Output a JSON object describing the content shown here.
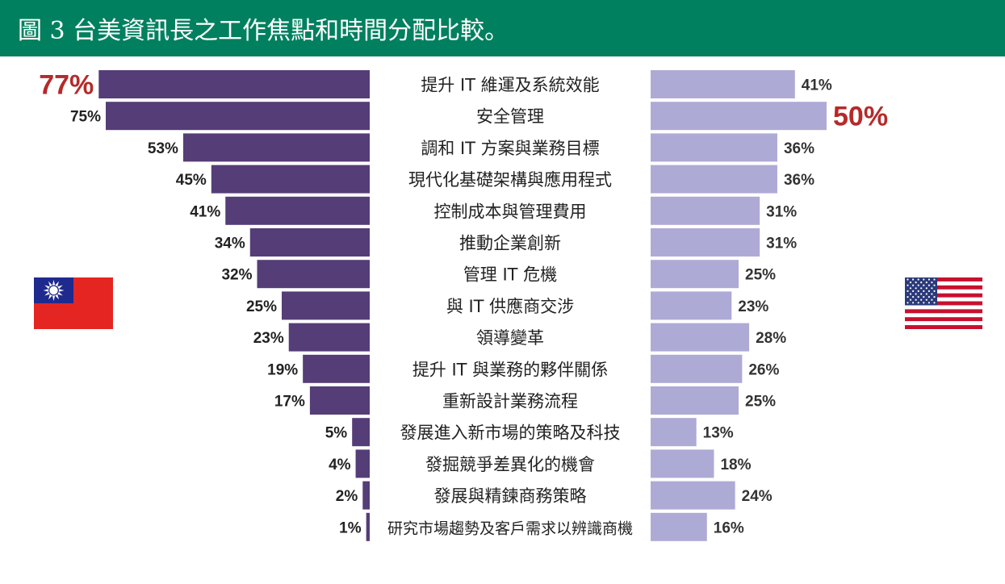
{
  "header": {
    "title": "圖 3 台美資訊長之工作焦點和時間分配比較。"
  },
  "flags": {
    "left": "taiwan-flag",
    "right": "usa-flag"
  },
  "colors": {
    "left_bar": "#553d78",
    "right_bar": "#aeaad6",
    "highlight": "#b52a2a",
    "header_bg": "#00805f"
  },
  "chart_data": {
    "type": "bar",
    "orientation": "horizontal-butterfly",
    "title": "",
    "categories": [
      "提升 IT 維運及系統效能",
      "安全管理",
      "調和 IT 方案與業務目標",
      "現代化基礎架構與應用程式",
      "控制成本與管理費用",
      "推動企業創新",
      "管理 IT 危機",
      "與 IT 供應商交涉",
      "領導變革",
      "提升 IT 與業務的夥伴關係",
      "重新設計業務流程",
      "發展進入新市場的策略及科技",
      "發掘競爭差異化的機會",
      "發展與精鍊商務策略",
      "研究市場趨勢及客戶需求以辨識商機"
    ],
    "series": [
      {
        "values": [
          77,
          75,
          53,
          45,
          41,
          34,
          32,
          25,
          23,
          19,
          17,
          5,
          4,
          2,
          1
        ],
        "labels": [
          "77%",
          "75%",
          "53%",
          "45%",
          "41%",
          "34%",
          "32%",
          "25%",
          "23%",
          "19%",
          "17%",
          "5%",
          "4%",
          "2%",
          "1%"
        ],
        "highlight_index": 0
      },
      {
        "values": [
          41,
          50,
          36,
          36,
          31,
          31,
          25,
          23,
          28,
          26,
          25,
          13,
          18,
          24,
          16
        ],
        "labels": [
          "41%",
          "50%",
          "36%",
          "36%",
          "31%",
          "31%",
          "25%",
          "23%",
          "28%",
          "26%",
          "25%",
          "13%",
          "18%",
          "24%",
          "16%"
        ],
        "highlight_index": 1
      }
    ],
    "grid": false,
    "legend": "none"
  }
}
